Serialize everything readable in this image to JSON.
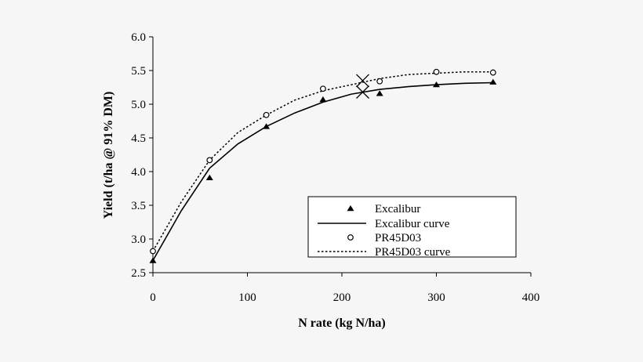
{
  "chart_data": {
    "type": "scatter",
    "title": "",
    "xlabel": "N rate (kg N/ha)",
    "ylabel": "Yield (t/ha @ 91% DM)",
    "xlim": [
      0,
      400
    ],
    "ylim": [
      2.5,
      6.0
    ],
    "xticks": [
      "0",
      "100",
      "200",
      "300",
      "400"
    ],
    "yticks": [
      "2.5",
      "3.0",
      "3.5",
      "4.0",
      "4.5",
      "5.0",
      "5.5",
      "6.0"
    ],
    "grid": false,
    "legend_position": "bottom-right",
    "series": [
      {
        "name": "Excalibur",
        "kind": "points",
        "marker": "filled-triangle",
        "x": [
          0,
          60,
          120,
          180,
          240,
          300,
          360
        ],
        "y": [
          2.68,
          3.91,
          4.67,
          5.07,
          5.16,
          5.29,
          5.33
        ]
      },
      {
        "name": "Excalibur curve",
        "kind": "line",
        "style": "solid",
        "x": [
          0,
          30,
          60,
          90,
          120,
          150,
          180,
          210,
          240,
          270,
          300,
          330,
          360
        ],
        "y": [
          2.68,
          3.42,
          4.05,
          4.41,
          4.67,
          4.87,
          5.03,
          5.15,
          5.22,
          5.26,
          5.29,
          5.31,
          5.32
        ]
      },
      {
        "name": "PR45D03",
        "kind": "points",
        "marker": "open-circle",
        "x": [
          0,
          60,
          120,
          180,
          240,
          300,
          360
        ],
        "y": [
          2.82,
          4.17,
          4.84,
          5.23,
          5.34,
          5.48,
          5.47
        ]
      },
      {
        "name": "PR45D03 curve",
        "kind": "line",
        "style": "dotted",
        "x": [
          0,
          30,
          60,
          90,
          120,
          150,
          180,
          210,
          240,
          270,
          300,
          330,
          360
        ],
        "y": [
          2.82,
          3.55,
          4.17,
          4.58,
          4.84,
          5.06,
          5.2,
          5.29,
          5.38,
          5.44,
          5.46,
          5.48,
          5.48
        ]
      }
    ],
    "annotations": [
      {
        "marker": "x-cross",
        "x": 222,
        "y": 5.35
      },
      {
        "marker": "x-cross",
        "x": 222,
        "y": 5.18
      }
    ]
  }
}
